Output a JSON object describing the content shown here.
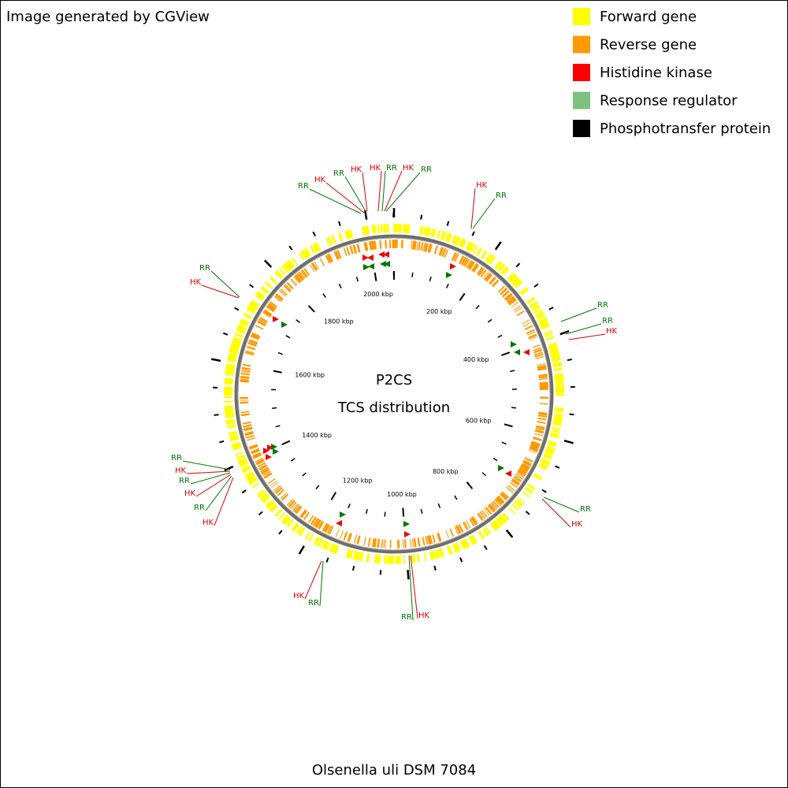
{
  "credit": "Image generated by CGView",
  "legend": [
    {
      "label": "Forward gene",
      "color": "#ffff00"
    },
    {
      "label": "Reverse gene",
      "color": "#ff9900"
    },
    {
      "label": "Histidine kinase",
      "color": "#ff0000"
    },
    {
      "label": "Response regulator",
      "color": "#80c080"
    },
    {
      "label": "Phosphotransfer protein",
      "color": "#000000"
    }
  ],
  "center": [
    "P2CS",
    "TCS distribution"
  ],
  "ticks": [
    "200 kbp",
    "400 kbp",
    "600 kbp",
    "800 kbp",
    "1000 kbp",
    "1200 kbp",
    "1400 kbp",
    "1600 kbp",
    "1800 kbp",
    "2000 kbp"
  ],
  "callouts": [
    {
      "label": "RR",
      "color": "#007700"
    },
    {
      "label": "HK",
      "color": "#dd0000"
    },
    {
      "label": "RR",
      "color": "#007700"
    },
    {
      "label": "HK",
      "color": "#dd0000"
    },
    {
      "label": "HK",
      "color": "#dd0000"
    },
    {
      "label": "RR",
      "color": "#007700"
    },
    {
      "label": "HK",
      "color": "#dd0000"
    },
    {
      "label": "RR",
      "color": "#007700"
    },
    {
      "label": "HK",
      "color": "#dd0000"
    },
    {
      "label": "RR",
      "color": "#007700"
    },
    {
      "label": "RR",
      "color": "#007700"
    },
    {
      "label": "RR",
      "color": "#007700"
    },
    {
      "label": "HK",
      "color": "#dd0000"
    },
    {
      "label": "RR",
      "color": "#007700"
    },
    {
      "label": "HK",
      "color": "#dd0000"
    },
    {
      "label": "HK",
      "color": "#dd0000"
    },
    {
      "label": "RR",
      "color": "#007700"
    },
    {
      "label": "HK",
      "color": "#dd0000"
    },
    {
      "label": "RR",
      "color": "#007700"
    },
    {
      "label": "RR",
      "color": "#007700"
    },
    {
      "label": "HK",
      "color": "#dd0000"
    },
    {
      "label": "RR",
      "color": "#007700"
    },
    {
      "label": "HK",
      "color": "#dd0000"
    },
    {
      "label": "RR",
      "color": "#007700"
    },
    {
      "label": "HK",
      "color": "#dd0000"
    },
    {
      "label": "RR",
      "color": "#007700"
    },
    {
      "label": "HK",
      "color": "#dd0000"
    }
  ],
  "organism": "Olsenella uli DSM 7084"
}
